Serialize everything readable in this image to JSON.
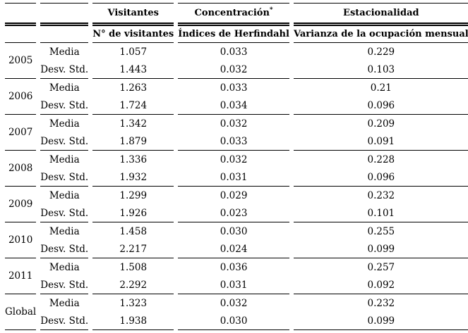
{
  "chart_data": {
    "type": "table",
    "column_groups": [
      {
        "label": "Visitantes",
        "sup": "",
        "sub": "N° de visitantes"
      },
      {
        "label": "Concentración",
        "sup": "*",
        "sub": "Índices de Herfindahl"
      },
      {
        "label": "Estacionalidad",
        "sup": "",
        "sub": "Varianza de la ocupación mensual"
      }
    ],
    "stat_labels": [
      "Media",
      "Desv. Std."
    ],
    "groups": [
      {
        "year": "2005",
        "rows": [
          {
            "stat": "Media",
            "visitantes": "1.057",
            "herfindahl": "0.033",
            "varianza": "0.229"
          },
          {
            "stat": "Desv. Std.",
            "visitantes": "1.443",
            "herfindahl": "0.032",
            "varianza": "0.103"
          }
        ]
      },
      {
        "year": "2006",
        "rows": [
          {
            "stat": "Media",
            "visitantes": "1.263",
            "herfindahl": "0.033",
            "varianza": "0.21"
          },
          {
            "stat": "Desv. Std.",
            "visitantes": "1.724",
            "herfindahl": "0.034",
            "varianza": "0.096"
          }
        ]
      },
      {
        "year": "2007",
        "rows": [
          {
            "stat": "Media",
            "visitantes": "1.342",
            "herfindahl": "0.032",
            "varianza": "0.209"
          },
          {
            "stat": "Desv. Std.",
            "visitantes": "1.879",
            "herfindahl": "0.033",
            "varianza": "0.091"
          }
        ]
      },
      {
        "year": "2008",
        "rows": [
          {
            "stat": "Media",
            "visitantes": "1.336",
            "herfindahl": "0.032",
            "varianza": "0.228"
          },
          {
            "stat": "Desv. Std.",
            "visitantes": "1.932",
            "herfindahl": "0.031",
            "varianza": "0.096"
          }
        ]
      },
      {
        "year": "2009",
        "rows": [
          {
            "stat": "Media",
            "visitantes": "1.299",
            "herfindahl": "0.029",
            "varianza": "0.232"
          },
          {
            "stat": "Desv. Std.",
            "visitantes": "1.926",
            "herfindahl": "0.023",
            "varianza": "0.101"
          }
        ]
      },
      {
        "year": "2010",
        "rows": [
          {
            "stat": "Media",
            "visitantes": "1.458",
            "herfindahl": "0.030",
            "varianza": "0.255"
          },
          {
            "stat": "Desv. Std.",
            "visitantes": "2.217",
            "herfindahl": "0.024",
            "varianza": "0.099"
          }
        ]
      },
      {
        "year": "2011",
        "rows": [
          {
            "stat": "Media",
            "visitantes": "1.508",
            "herfindahl": "0.036",
            "varianza": "0.257"
          },
          {
            "stat": "Desv. Std.",
            "visitantes": "2.292",
            "herfindahl": "0.031",
            "varianza": "0.092"
          }
        ]
      },
      {
        "year": "Global",
        "rows": [
          {
            "stat": "Media",
            "visitantes": "1.323",
            "herfindahl": "0.032",
            "varianza": "0.232"
          },
          {
            "stat": "Desv. Std.",
            "visitantes": "1.938",
            "herfindahl": "0.030",
            "varianza": "0.099"
          }
        ]
      }
    ]
  }
}
